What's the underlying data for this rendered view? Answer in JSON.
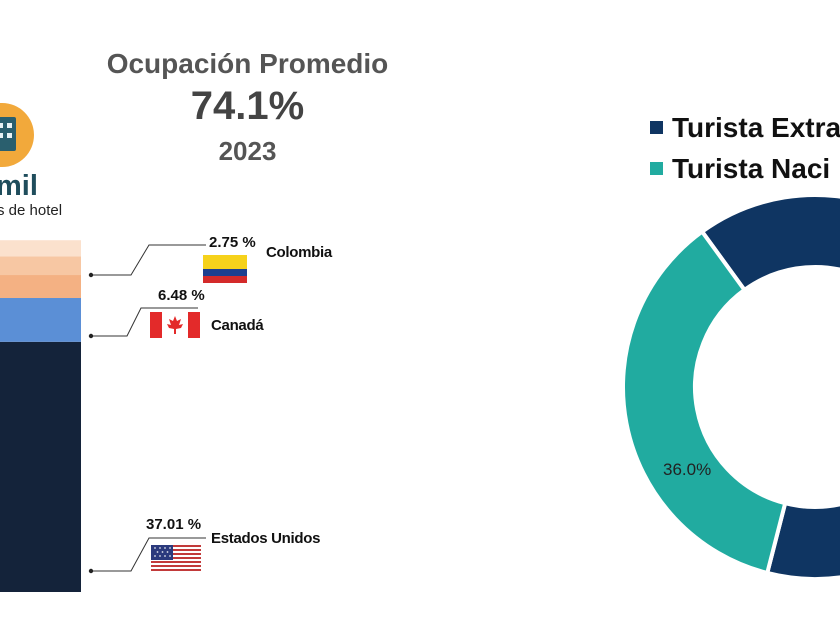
{
  "header": {
    "title": "Ocupación Promedio",
    "value": "74.1%",
    "year": "2023"
  },
  "hotel": {
    "count_label": "mil",
    "subtitle": "s de hotel",
    "icon": "hotel-building-icon"
  },
  "chart_data": [
    {
      "type": "bar",
      "stacked": true,
      "segments": [
        {
          "value": 37.01,
          "label": "37.01 %",
          "country": "Estados Unidos",
          "color": "#14233a",
          "flag": "us-flag-icon"
        },
        {
          "value": 6.48,
          "label": "6.48 %",
          "country": "Canadá",
          "color": "#5b8fd6",
          "flag": "canada-flag-icon"
        },
        {
          "value": 3.4,
          "color": "#f4b183"
        },
        {
          "value": 2.75,
          "label": "2.75 %",
          "country": "Colombia",
          "color": "#f7c7a3",
          "flag": "colombia-flag-icon"
        },
        {
          "value": 2.4,
          "color": "#fbe1cd"
        }
      ]
    },
    {
      "type": "pie",
      "donut": true,
      "legend_position": "top-right",
      "series": [
        {
          "name": "Turista Extra",
          "value": 64.0,
          "color": "#0f3562"
        },
        {
          "name": "Turista Naci",
          "value": 36.0,
          "label": "36.0%",
          "color": "#21aba0"
        }
      ]
    }
  ]
}
